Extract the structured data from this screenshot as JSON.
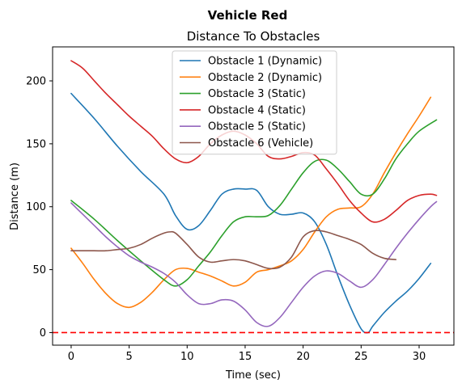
{
  "chart_data": {
    "type": "line",
    "suptitle": "Vehicle Red",
    "title": "Distance To Obstacles",
    "xlabel": "Time (sec)",
    "ylabel": "Distance (m)",
    "xlim": [
      -1.6,
      33.0
    ],
    "ylim": [
      -10,
      227
    ],
    "xticks": [
      0,
      5,
      10,
      15,
      20,
      25,
      30
    ],
    "yticks": [
      0,
      50,
      100,
      150,
      200
    ],
    "grid": false,
    "legend_position": "top-center",
    "reference_line": {
      "y": 0,
      "style": "dashed",
      "color": "#ff0000"
    },
    "series": [
      {
        "name": "Obstacle 1 (Dynamic)",
        "color": "#1f77b4",
        "x": [
          0,
          2,
          4,
          6,
          8,
          9,
          10,
          11,
          12,
          13,
          14,
          15,
          16,
          17,
          18,
          19,
          20,
          21,
          22,
          23,
          24,
          25,
          25.6,
          26,
          27,
          28,
          29,
          30,
          31
        ],
        "y": [
          190,
          170,
          148,
          128,
          110,
          93,
          82,
          85,
          97,
          110,
          114,
          114,
          113,
          100,
          94,
          94,
          95,
          88,
          70,
          45,
          22,
          3,
          0,
          5,
          16,
          25,
          33,
          43,
          55
        ]
      },
      {
        "name": "Obstacle 2 (Dynamic)",
        "color": "#ff7f0e",
        "x": [
          0,
          1,
          2,
          3,
          4,
          5,
          6,
          7,
          8,
          9,
          10,
          11,
          12,
          13,
          14,
          15,
          16,
          17,
          18,
          19,
          20,
          21,
          22,
          23,
          24,
          25,
          26,
          27,
          28,
          29,
          30,
          31
        ],
        "y": [
          67,
          55,
          42,
          31,
          23,
          20,
          24,
          32,
          42,
          50,
          51,
          48,
          45,
          41,
          37,
          40,
          48,
          50,
          53,
          57,
          66,
          80,
          92,
          98,
          99,
          100,
          110,
          127,
          143,
          158,
          172,
          187
        ]
      },
      {
        "name": "Obstacle 3 (Static)",
        "color": "#2ca02c",
        "x": [
          0,
          2,
          4,
          6,
          8,
          9,
          10,
          11,
          12,
          13,
          14,
          15,
          16,
          17,
          18,
          19,
          20,
          21,
          22,
          23,
          24,
          25,
          26,
          27,
          28,
          29,
          30,
          31.5
        ],
        "y": [
          105,
          90,
          73,
          57,
          42,
          37,
          42,
          53,
          64,
          77,
          88,
          92,
          92,
          93,
          101,
          114,
          127,
          136,
          137,
          130,
          120,
          110,
          110,
          122,
          138,
          150,
          160,
          169
        ]
      },
      {
        "name": "Obstacle 4 (Static)",
        "color": "#d62728",
        "x": [
          0,
          1,
          2,
          3,
          4,
          5,
          6,
          7,
          8,
          9,
          10,
          11,
          12,
          13,
          14,
          15,
          16,
          17,
          18,
          19,
          20,
          21,
          22,
          23,
          24,
          25,
          26,
          27,
          28,
          29,
          30,
          31,
          31.5
        ],
        "y": [
          216,
          210,
          200,
          190,
          181,
          172,
          164,
          156,
          146,
          138,
          135,
          140,
          150,
          157,
          160,
          157,
          150,
          140,
          138,
          140,
          143,
          141,
          130,
          118,
          105,
          95,
          88,
          90,
          97,
          105,
          109,
          110,
          109
        ]
      },
      {
        "name": "Obstacle 5 (Static)",
        "color": "#9467bd",
        "x": [
          0,
          1,
          2,
          3,
          4,
          5,
          6,
          7,
          8,
          9,
          10,
          11,
          12,
          13,
          14,
          15,
          16,
          17,
          18,
          19,
          20,
          21,
          22,
          23,
          24,
          25,
          26,
          27,
          28,
          29,
          30,
          31,
          31.5
        ],
        "y": [
          103,
          94,
          85,
          76,
          68,
          61,
          56,
          52,
          47,
          40,
          30,
          23,
          23,
          26,
          25,
          18,
          8,
          5,
          12,
          24,
          36,
          45,
          49,
          47,
          41,
          36,
          42,
          54,
          67,
          79,
          90,
          100,
          104
        ]
      },
      {
        "name": "Obstacle 6 (Vehicle)",
        "color": "#8c564b",
        "x": [
          0,
          1,
          2,
          3,
          4,
          5,
          6,
          7,
          8,
          8.5,
          9,
          10,
          11,
          12,
          13,
          14,
          15,
          16,
          17,
          18,
          19,
          20,
          21,
          22,
          23,
          24,
          25,
          26,
          27,
          28
        ],
        "y": [
          65,
          65,
          65,
          65,
          66,
          67,
          70,
          75,
          79,
          80,
          79,
          70,
          60,
          56,
          57,
          58,
          57,
          54,
          51,
          52,
          60,
          76,
          81,
          80,
          77,
          74,
          70,
          63,
          59,
          58
        ]
      }
    ]
  }
}
